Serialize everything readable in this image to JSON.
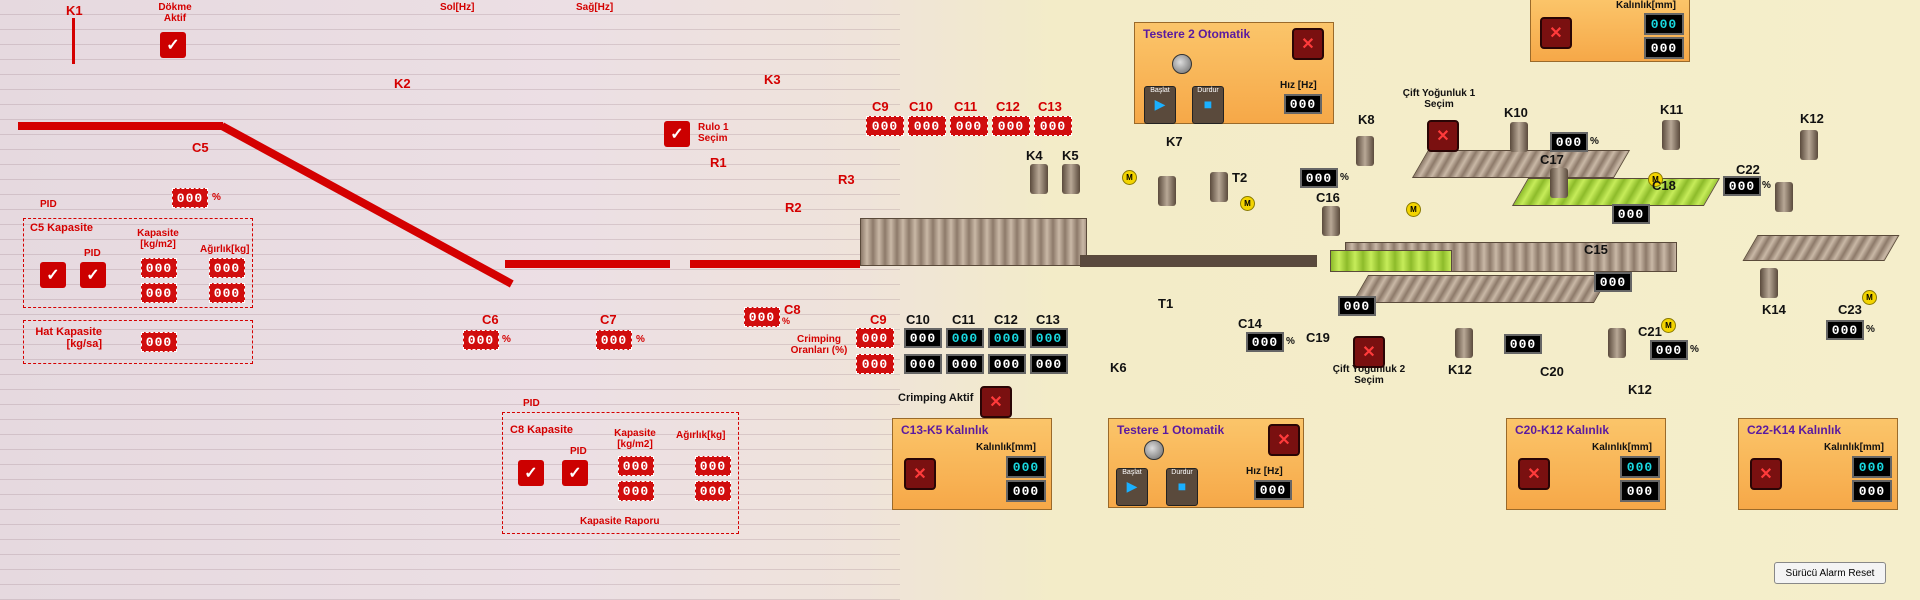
{
  "red_section": {
    "top_labels": {
      "k1": "K1",
      "dokme": "Dökme Aktif",
      "sol": "Sol[Hz]",
      "sag": "Sağ[Hz]",
      "k2": "K2",
      "k3": "K3",
      "rulo": "Rulo 1 Seçim",
      "r1": "R1",
      "r2": "R2",
      "r3": "R3"
    },
    "c5": {
      "label": "C5",
      "value": "000",
      "unit": "%"
    },
    "c6": {
      "label": "C6",
      "value": "000",
      "unit": "%"
    },
    "c7": {
      "label": "C7",
      "value": "000",
      "unit": "%"
    },
    "c8": {
      "label": "C8",
      "value": "000",
      "unit": "%"
    },
    "crimping_oran": "Crimping Oranları (%)",
    "c5_capacity": {
      "pid_outer": "PID",
      "title": "C5 Kapasite",
      "pid": "PID",
      "kapasite": "Kapasite [kg/m2]",
      "agirlik": "Ağırlık[kg]",
      "v1": "000",
      "v2": "000",
      "v3": "000",
      "v4": "000"
    },
    "hat_capacity": {
      "title": "Hat Kapasite [kg/sa]",
      "value": "000"
    },
    "c8_capacity": {
      "pid_outer": "PID",
      "title": "C8 Kapasite",
      "pid": "PID",
      "kapasite": "Kapasite [kg/m2]",
      "agirlik": "Ağırlık[kg]",
      "v1": "000",
      "v2": "000",
      "v3": "000",
      "v4": "000",
      "report": "Kapasite Raporu"
    },
    "cs_top": {
      "labels": [
        "C9",
        "C10",
        "C11",
        "C12",
        "C13"
      ],
      "values": [
        "000",
        "000",
        "000",
        "000",
        "000"
      ]
    },
    "cs_bottom": {
      "labels": [
        "C9",
        "C10",
        "C11",
        "C12",
        "C13"
      ],
      "row1": [
        "000",
        "000",
        "000",
        "000",
        "000"
      ],
      "row2": [
        "000",
        "000",
        "000",
        "000",
        "000"
      ]
    }
  },
  "crimping": "Crimping Aktif",
  "testere2": {
    "title": "Testere 2 Otomatik",
    "start": "Başlat",
    "stop": "Durdur",
    "hiz": "Hız [Hz]",
    "value": "000"
  },
  "testere1": {
    "title": "Testere 1 Otomatik",
    "start": "Başlat",
    "stop": "Durdur",
    "hiz": "Hız [Hz]",
    "value": "000"
  },
  "c13k5": {
    "title": "C13-K5 Kalınlık",
    "kal": "Kalınlık[mm]",
    "v1": "000",
    "v2": "000"
  },
  "c20k12": {
    "title": "C20-K12 Kalınlık",
    "kal": "Kalınlık[mm]",
    "v1": "000",
    "v2": "000"
  },
  "c22k14": {
    "title": "C22-K14 Kalınlık",
    "kal": "Kalınlık[mm]",
    "v1": "000",
    "v2": "000"
  },
  "top_right": {
    "kal": "Kalınlık[mm]",
    "v1": "000",
    "v2": "000"
  },
  "machine": {
    "k4": "K4",
    "k5": "K5",
    "k6": "K6",
    "k7": "K7",
    "t1": "T1",
    "t2": "T2",
    "k8": "K8",
    "k10": "K10",
    "k11": "K11",
    "k12a": "K12",
    "k12b": "K12",
    "k12c": "K12",
    "k14": "K14",
    "c14": {
      "label": "C14",
      "value": "000",
      "unit": "%"
    },
    "c16": {
      "label": "C16",
      "value": "000",
      "unit": "%"
    },
    "c17": {
      "label": "C17",
      "value": "000",
      "unit": "%"
    },
    "c18": {
      "label": "C18",
      "value": "000"
    },
    "c15": {
      "label": "C15",
      "value": "000"
    },
    "c19": {
      "label": "C19",
      "value": "000"
    },
    "c20": {
      "label": "C20",
      "value": "000"
    },
    "c21": {
      "label": "C21",
      "value": "000",
      "unit": "%"
    },
    "c22": {
      "label": "C22",
      "value": "000",
      "unit": "%"
    },
    "c23": {
      "label": "C23",
      "value": "000",
      "unit": "%"
    },
    "cift1": "Çift Yoğunluk 1 Seçim",
    "cift2": "Çift Yoğunluk 2 Seçim"
  },
  "reset": "Sürücü Alarm Reset",
  "badge": "M"
}
